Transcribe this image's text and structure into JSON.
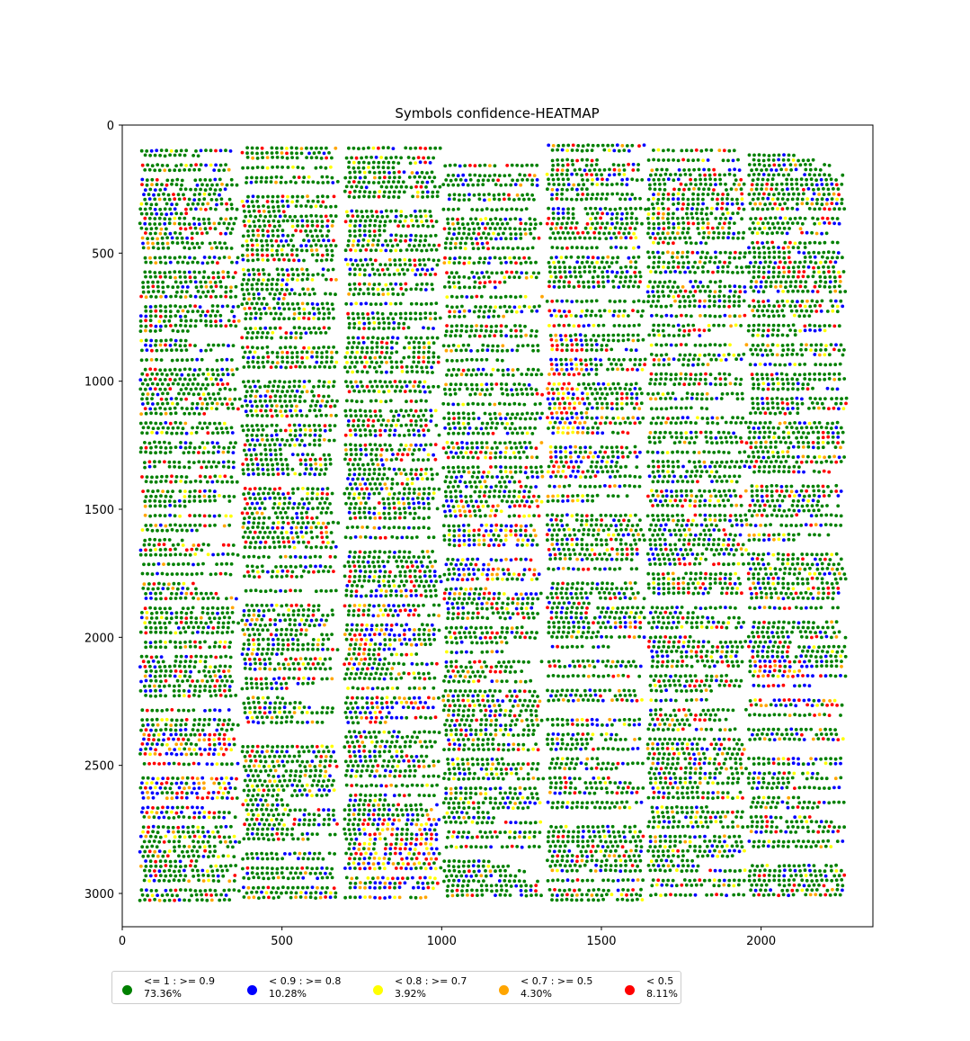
{
  "chart_data": {
    "type": "scatter",
    "title": "Symbols confidence-HEATMAP",
    "xlabel": "",
    "ylabel": "",
    "xlim": [
      0,
      2350
    ],
    "ylim": [
      3130,
      0
    ],
    "y_inverted": true,
    "x_ticks": [
      "0",
      "500",
      "1000",
      "1500",
      "2000"
    ],
    "y_ticks": [
      "0",
      "500",
      "1000",
      "1500",
      "2000",
      "2500",
      "3000"
    ],
    "grid": false,
    "legend_placement": "below-left",
    "series": [
      {
        "name": "<= 1 : >= 0.9",
        "percent": "73.36%",
        "color": "#008000",
        "share": 0.7336
      },
      {
        "name": "< 0.9 : >= 0.8",
        "percent": "10.28%",
        "color": "#0000ff",
        "share": 0.1028
      },
      {
        "name": "< 0.8 : >= 0.7",
        "percent": "3.92%",
        "color": "#ffff00",
        "share": 0.0392
      },
      {
        "name": "< 0.7 : >= 0.5",
        "percent": "4.30%",
        "color": "#ffa500",
        "share": 0.043
      },
      {
        "name": "< 0.5",
        "percent": "8.11%",
        "color": "#ff0000",
        "share": 0.0811
      }
    ],
    "text_columns": [
      {
        "x": [
          55,
          370
        ],
        "y": [
          100,
          3030
        ]
      },
      {
        "x": [
          375,
          680
        ],
        "y": [
          90,
          3030
        ]
      },
      {
        "x": [
          695,
          1000
        ],
        "y": [
          90,
          3030
        ]
      },
      {
        "x": [
          1005,
          1320
        ],
        "y": [
          120,
          3020
        ]
      },
      {
        "x": [
          1330,
          1640
        ],
        "y": [
          80,
          3030
        ]
      },
      {
        "x": [
          1645,
          1960
        ],
        "y": [
          80,
          3020
        ]
      },
      {
        "x": [
          1960,
          2270
        ],
        "y": [
          80,
          3020
        ]
      }
    ],
    "dense_low_confidence_regions": [
      {
        "x": [
          1040,
          1310
        ],
        "y": [
          1480,
          1830
        ]
      },
      {
        "x": [
          740,
          920
        ],
        "y": [
          1830,
          2050
        ]
      },
      {
        "x": [
          740,
          990
        ],
        "y": [
          2230,
          2350
        ]
      },
      {
        "x": [
          740,
          990
        ],
        "y": [
          2700,
          3030
        ]
      },
      {
        "x": [
          1330,
          1450
        ],
        "y": [
          620,
          1400
        ]
      },
      {
        "x": [
          1980,
          2270
        ],
        "y": [
          2080,
          2300
        ]
      },
      {
        "x": [
          60,
          350
        ],
        "y": [
          2380,
          2700
        ]
      }
    ]
  }
}
